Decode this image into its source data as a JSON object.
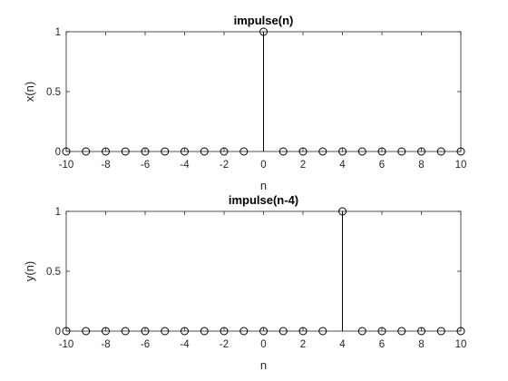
{
  "chart_data": [
    {
      "type": "stem",
      "title": "impulse(n)",
      "xlabel": "n",
      "ylabel": "x(n)",
      "xlim": [
        -10,
        10
      ],
      "ylim": [
        0,
        1
      ],
      "xticks": [
        -10,
        -8,
        -6,
        -4,
        -2,
        0,
        2,
        4,
        6,
        8,
        10
      ],
      "xtick_labels": [
        "-10",
        "-8",
        "-6",
        "-4",
        "-2",
        "0",
        "2",
        "4",
        "6",
        "8",
        "10"
      ],
      "yticks": [
        0,
        0.5,
        1
      ],
      "ytick_labels": [
        "0",
        "0.5",
        "1"
      ],
      "grid": false,
      "x": [
        -10,
        -9,
        -8,
        -7,
        -6,
        -5,
        -4,
        -3,
        -2,
        -1,
        0,
        1,
        2,
        3,
        4,
        5,
        6,
        7,
        8,
        9,
        10
      ],
      "y": [
        0,
        0,
        0,
        0,
        0,
        0,
        0,
        0,
        0,
        0,
        1,
        0,
        0,
        0,
        0,
        0,
        0,
        0,
        0,
        0,
        0
      ],
      "color": "#000000"
    },
    {
      "type": "stem",
      "title": "impulse(n-4)",
      "xlabel": "n",
      "ylabel": "y(n)",
      "xlim": [
        -10,
        10
      ],
      "ylim": [
        0,
        1
      ],
      "xticks": [
        -10,
        -8,
        -6,
        -4,
        -2,
        0,
        2,
        4,
        6,
        8,
        10
      ],
      "xtick_labels": [
        "-10",
        "-8",
        "-6",
        "-4",
        "-2",
        "0",
        "2",
        "4",
        "6",
        "8",
        "10"
      ],
      "yticks": [
        0,
        0.5,
        1
      ],
      "ytick_labels": [
        "0",
        "0.5",
        "1"
      ],
      "grid": false,
      "x": [
        -10,
        -9,
        -8,
        -7,
        -6,
        -5,
        -4,
        -3,
        -2,
        -1,
        0,
        1,
        2,
        3,
        4,
        5,
        6,
        7,
        8,
        9,
        10
      ],
      "y": [
        0,
        0,
        0,
        0,
        0,
        0,
        0,
        0,
        0,
        0,
        0,
        0,
        0,
        0,
        1,
        0,
        0,
        0,
        0,
        0,
        0
      ],
      "color": "#000000"
    }
  ]
}
